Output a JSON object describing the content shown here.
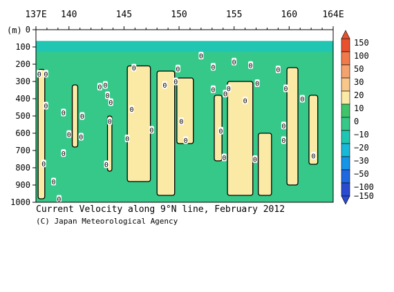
{
  "chart_data": {
    "type": "heatmap",
    "title": "Current Velocity along 9°N line, February 2012",
    "copyright": "(C) Japan Meteorological Agency",
    "xlabel": "",
    "ylabel": "",
    "y_unit_label": "(m)",
    "x_range_deg_east": [
      137,
      164
    ],
    "y_range_m": [
      0,
      1000
    ],
    "y_inverted": true,
    "x_ticks": [
      {
        "value": 137,
        "label": "137E"
      },
      {
        "value": 140,
        "label": "140"
      },
      {
        "value": 145,
        "label": "145"
      },
      {
        "value": 150,
        "label": "150"
      },
      {
        "value": 155,
        "label": "155"
      },
      {
        "value": 160,
        "label": "160"
      },
      {
        "value": 164,
        "label": "164E"
      }
    ],
    "y_ticks": [
      {
        "value": 0,
        "label": "0"
      },
      {
        "value": 100,
        "label": "100"
      },
      {
        "value": 200,
        "label": "200"
      },
      {
        "value": 300,
        "label": "300"
      },
      {
        "value": 400,
        "label": "400"
      },
      {
        "value": 500,
        "label": "500"
      },
      {
        "value": 600,
        "label": "600"
      },
      {
        "value": 700,
        "label": "700"
      },
      {
        "value": 800,
        "label": "800"
      },
      {
        "value": 900,
        "label": "900"
      },
      {
        "value": 1000,
        "label": "1000"
      }
    ],
    "colorbar": {
      "levels": [
        {
          "label": "150",
          "value": 150
        },
        {
          "label": "100",
          "value": 100
        },
        {
          "label": "50",
          "value": 50
        },
        {
          "label": "30",
          "value": 30
        },
        {
          "label": "20",
          "value": 20
        },
        {
          "label": "10",
          "value": 10
        },
        {
          "label": "0",
          "value": 0
        },
        {
          "label": "−10",
          "value": -10
        },
        {
          "label": "−20",
          "value": -20
        },
        {
          "label": "−30",
          "value": -30
        },
        {
          "label": "−50",
          "value": -50
        },
        {
          "label": "−100",
          "value": -100
        },
        {
          "label": "−150",
          "value": -150
        }
      ],
      "colors": [
        "#e8512e",
        "#f07a4a",
        "#f5a36e",
        "#f8c78a",
        "#fbe9a6",
        "#3fc46a",
        "#36c888",
        "#21c6b3",
        "#19b8d8",
        "#1694e6",
        "#1f68e0",
        "#2a4ad0"
      ]
    },
    "regions": [
      {
        "sign": "positive",
        "x_range": [
          137.2,
          137.8
        ],
        "depth_range": [
          230,
          980
        ]
      },
      {
        "sign": "positive",
        "x_range": [
          140.3,
          140.8
        ],
        "depth_range": [
          320,
          680
        ]
      },
      {
        "sign": "positive",
        "x_range": [
          143.5,
          143.9
        ],
        "depth_range": [
          500,
          820
        ]
      },
      {
        "sign": "positive",
        "x_range": [
          145.3,
          147.4
        ],
        "depth_range": [
          210,
          880
        ]
      },
      {
        "sign": "positive",
        "x_range": [
          148.0,
          149.6
        ],
        "depth_range": [
          240,
          960
        ]
      },
      {
        "sign": "positive",
        "x_range": [
          149.8,
          151.3
        ],
        "depth_range": [
          280,
          660
        ]
      },
      {
        "sign": "positive",
        "x_range": [
          153.2,
          153.9
        ],
        "depth_range": [
          380,
          760
        ]
      },
      {
        "sign": "positive",
        "x_range": [
          154.4,
          156.7
        ],
        "depth_range": [
          300,
          960
        ]
      },
      {
        "sign": "positive",
        "x_range": [
          157.2,
          158.4
        ],
        "depth_range": [
          600,
          960
        ]
      },
      {
        "sign": "positive",
        "x_range": [
          159.8,
          160.8
        ],
        "depth_range": [
          220,
          900
        ]
      },
      {
        "sign": "positive",
        "x_range": [
          161.8,
          162.6
        ],
        "depth_range": [
          380,
          780
        ]
      },
      {
        "sign": "negative_strong",
        "x_range": [
          137,
          164
        ],
        "depth_range": [
          40,
          130
        ]
      }
    ],
    "zero_labels": [
      {
        "x": 137.3,
        "depth": 255
      },
      {
        "x": 137.9,
        "depth": 255
      },
      {
        "x": 137.9,
        "depth": 440
      },
      {
        "x": 139.5,
        "depth": 480
      },
      {
        "x": 137.7,
        "depth": 775
      },
      {
        "x": 138.6,
        "depth": 880
      },
      {
        "x": 139.1,
        "depth": 980
      },
      {
        "x": 139.5,
        "depth": 715
      },
      {
        "x": 140.0,
        "depth": 605
      },
      {
        "x": 141.2,
        "depth": 500
      },
      {
        "x": 141.1,
        "depth": 620
      },
      {
        "x": 142.8,
        "depth": 330
      },
      {
        "x": 143.3,
        "depth": 320
      },
      {
        "x": 143.5,
        "depth": 380
      },
      {
        "x": 143.8,
        "depth": 420
      },
      {
        "x": 143.7,
        "depth": 530
      },
      {
        "x": 143.4,
        "depth": 780
      },
      {
        "x": 145.3,
        "depth": 630
      },
      {
        "x": 145.7,
        "depth": 460
      },
      {
        "x": 145.9,
        "depth": 220
      },
      {
        "x": 147.5,
        "depth": 580
      },
      {
        "x": 148.7,
        "depth": 320
      },
      {
        "x": 149.7,
        "depth": 300
      },
      {
        "x": 149.9,
        "depth": 225
      },
      {
        "x": 150.2,
        "depth": 530
      },
      {
        "x": 150.6,
        "depth": 640
      },
      {
        "x": 152.0,
        "depth": 150
      },
      {
        "x": 153.1,
        "depth": 215
      },
      {
        "x": 153.1,
        "depth": 345
      },
      {
        "x": 153.8,
        "depth": 585
      },
      {
        "x": 154.1,
        "depth": 740
      },
      {
        "x": 154.2,
        "depth": 370
      },
      {
        "x": 154.5,
        "depth": 340
      },
      {
        "x": 155.0,
        "depth": 185
      },
      {
        "x": 156.0,
        "depth": 410
      },
      {
        "x": 156.5,
        "depth": 205
      },
      {
        "x": 156.9,
        "depth": 750
      },
      {
        "x": 157.1,
        "depth": 310
      },
      {
        "x": 159.0,
        "depth": 230
      },
      {
        "x": 159.7,
        "depth": 340
      },
      {
        "x": 159.5,
        "depth": 555
      },
      {
        "x": 159.5,
        "depth": 640
      },
      {
        "x": 161.2,
        "depth": 400
      },
      {
        "x": 162.2,
        "depth": 730
      }
    ]
  }
}
